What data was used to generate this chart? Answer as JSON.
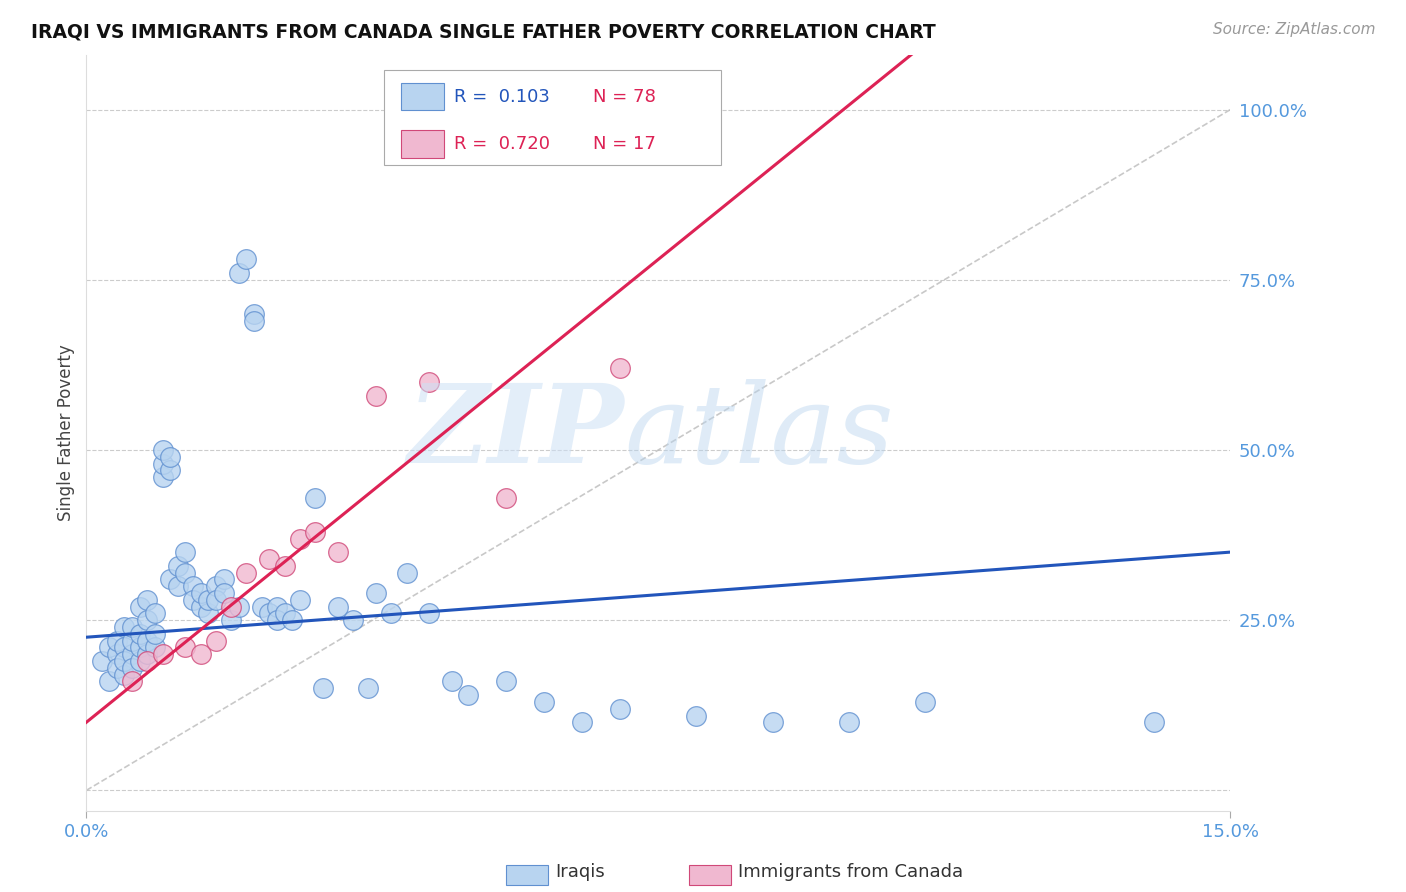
{
  "title": "IRAQI VS IMMIGRANTS FROM CANADA SINGLE FATHER POVERTY CORRELATION CHART",
  "source": "Source: ZipAtlas.com",
  "ylabel": "Single Father Poverty",
  "xlim": [
    0.0,
    0.15
  ],
  "ylim": [
    -0.03,
    1.08
  ],
  "color_iraqi_face": "#b8d4f0",
  "color_iraqi_edge": "#6090d0",
  "color_canada_face": "#f0b8d0",
  "color_canada_edge": "#d04878",
  "color_line_iraqi": "#2255bb",
  "color_line_canada": "#dd2255",
  "color_diagonal": "#bbbbbb",
  "color_grid": "#cccccc",
  "color_ytick": "#5599dd",
  "color_xtick": "#5599dd",
  "ytick_values": [
    0.0,
    0.25,
    0.5,
    0.75,
    1.0
  ],
  "ytick_labels": [
    "",
    "25.0%",
    "50.0%",
    "75.0%",
    "100.0%"
  ],
  "xtick_values": [
    0.0,
    0.15
  ],
  "xtick_labels": [
    "0.0%",
    "15.0%"
  ],
  "legend_r1_text": "R =  0.103",
  "legend_n1_text": "N = 78",
  "legend_r1_color": "#2255bb",
  "legend_n1_color": "#dd2255",
  "legend_r2_text": "R =  0.720",
  "legend_n2_text": "N = 17",
  "legend_r2_color": "#dd2255",
  "legend_n2_color": "#dd2255",
  "legend_label1": "Iraqis",
  "legend_label2": "Immigrants from Canada",
  "watermark_zip": "ZIP",
  "watermark_atlas": "atlas",
  "iraqis_x": [
    0.002,
    0.003,
    0.003,
    0.004,
    0.004,
    0.004,
    0.005,
    0.005,
    0.005,
    0.005,
    0.006,
    0.006,
    0.006,
    0.006,
    0.007,
    0.007,
    0.007,
    0.007,
    0.008,
    0.008,
    0.008,
    0.008,
    0.009,
    0.009,
    0.009,
    0.01,
    0.01,
    0.01,
    0.011,
    0.011,
    0.011,
    0.012,
    0.012,
    0.013,
    0.013,
    0.014,
    0.014,
    0.015,
    0.015,
    0.016,
    0.016,
    0.017,
    0.017,
    0.018,
    0.018,
    0.019,
    0.02,
    0.02,
    0.021,
    0.022,
    0.022,
    0.023,
    0.024,
    0.025,
    0.025,
    0.026,
    0.027,
    0.028,
    0.03,
    0.031,
    0.033,
    0.035,
    0.037,
    0.038,
    0.04,
    0.042,
    0.045,
    0.048,
    0.05,
    0.055,
    0.06,
    0.065,
    0.07,
    0.08,
    0.09,
    0.1,
    0.11,
    0.14
  ],
  "iraqis_y": [
    0.19,
    0.16,
    0.21,
    0.2,
    0.18,
    0.22,
    0.17,
    0.21,
    0.19,
    0.24,
    0.2,
    0.18,
    0.22,
    0.24,
    0.19,
    0.21,
    0.23,
    0.27,
    0.2,
    0.22,
    0.25,
    0.28,
    0.21,
    0.23,
    0.26,
    0.46,
    0.48,
    0.5,
    0.47,
    0.49,
    0.31,
    0.33,
    0.3,
    0.32,
    0.35,
    0.3,
    0.28,
    0.27,
    0.29,
    0.26,
    0.28,
    0.3,
    0.28,
    0.31,
    0.29,
    0.25,
    0.27,
    0.76,
    0.78,
    0.7,
    0.69,
    0.27,
    0.26,
    0.27,
    0.25,
    0.26,
    0.25,
    0.28,
    0.43,
    0.15,
    0.27,
    0.25,
    0.15,
    0.29,
    0.26,
    0.32,
    0.26,
    0.16,
    0.14,
    0.16,
    0.13,
    0.1,
    0.12,
    0.11,
    0.1,
    0.1,
    0.13,
    0.1
  ],
  "canada_x": [
    0.006,
    0.008,
    0.01,
    0.013,
    0.015,
    0.017,
    0.019,
    0.021,
    0.024,
    0.026,
    0.028,
    0.03,
    0.033,
    0.038,
    0.045,
    0.055,
    0.07
  ],
  "canada_y": [
    0.16,
    0.19,
    0.2,
    0.21,
    0.2,
    0.22,
    0.27,
    0.32,
    0.34,
    0.33,
    0.37,
    0.38,
    0.35,
    0.58,
    0.6,
    0.43,
    0.62
  ],
  "iraqi_line_x0": 0.0,
  "iraqi_line_y0": 0.225,
  "iraqi_line_x1": 0.15,
  "iraqi_line_y1": 0.35,
  "canada_line_x0": 0.0,
  "canada_line_y0": 0.1,
  "canada_line_x1": 0.075,
  "canada_line_y1": 0.78
}
